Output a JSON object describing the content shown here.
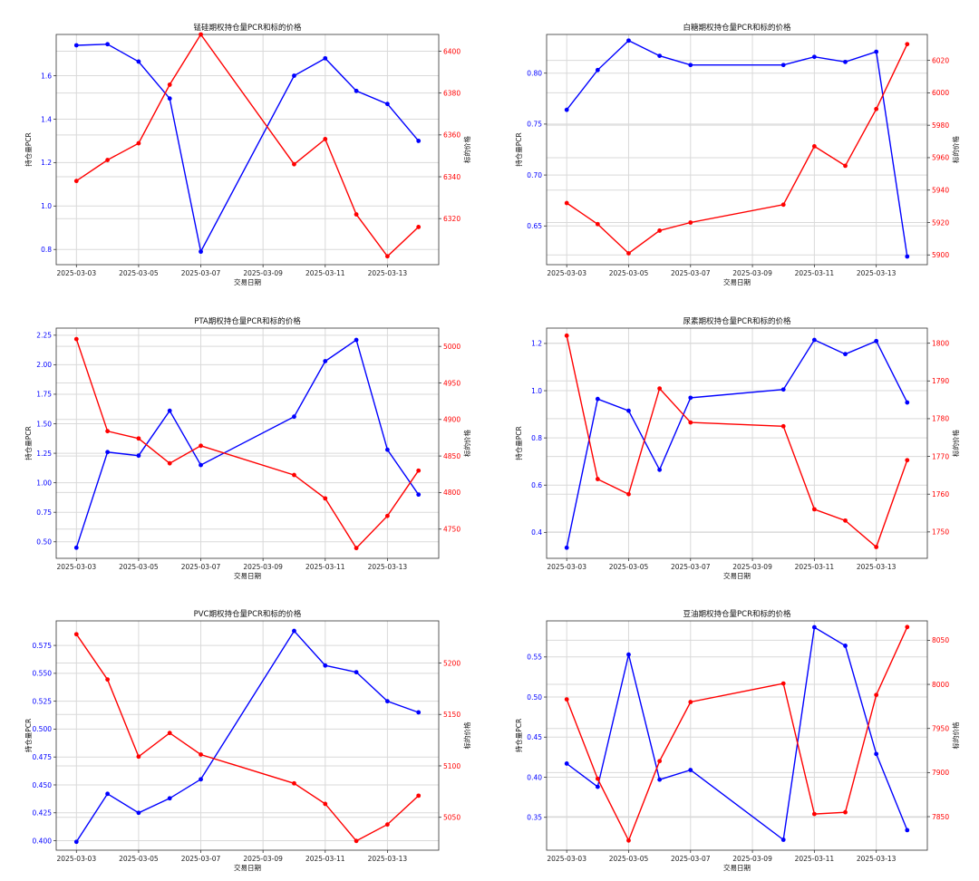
{
  "colors": {
    "pcr": "#0000ff",
    "price": "#ff0000",
    "grid": "#d9d9d9",
    "axis": "#333333"
  },
  "chart_data": [
    {
      "type": "line",
      "title": "锰硅期权持仓量PCR和标的价格",
      "xlabel": "交易日期",
      "ylabel_left": "持仓量PCR",
      "ylabel_right": "标的价格",
      "x": [
        "2025-03-03",
        "2025-03-04",
        "2025-03-05",
        "2025-03-06",
        "2025-03-07",
        "2025-03-10",
        "2025-03-11",
        "2025-03-12",
        "2025-03-13",
        "2025-03-14"
      ],
      "xticks": [
        "2025-03-03",
        "2025-03-05",
        "2025-03-07",
        "2025-03-09",
        "2025-03-11",
        "2025-03-13"
      ],
      "grid": true,
      "left_axis": {
        "lim": [
          0.73,
          1.79
        ],
        "ticks": [
          0.8,
          1.0,
          1.2,
          1.4,
          1.6
        ],
        "labels": [
          "0.8",
          "1.0",
          "1.2",
          "1.4",
          "1.6"
        ]
      },
      "right_axis": {
        "lim": [
          6298,
          6408
        ],
        "ticks": [
          6320,
          6340,
          6360,
          6380,
          6400
        ],
        "labels": [
          "6320",
          "6340",
          "6360",
          "6380",
          "6400"
        ]
      },
      "series": [
        {
          "axis": "left",
          "values": [
            1.74,
            1.745,
            1.665,
            1.495,
            0.79,
            1.6,
            1.68,
            1.53,
            1.47,
            1.3
          ]
        },
        {
          "axis": "right",
          "values": [
            6338,
            6348,
            6356,
            6384,
            6408,
            6346,
            6358,
            6322,
            6302,
            6316
          ]
        }
      ]
    },
    {
      "type": "line",
      "title": "白糖期权持仓量PCR和标的价格",
      "xlabel": "交易日期",
      "ylabel_left": "持仓量PCR",
      "ylabel_right": "标的价格",
      "x": [
        "2025-03-03",
        "2025-03-04",
        "2025-03-05",
        "2025-03-06",
        "2025-03-07",
        "2025-03-10",
        "2025-03-11",
        "2025-03-12",
        "2025-03-13",
        "2025-03-14"
      ],
      "xticks": [
        "2025-03-03",
        "2025-03-05",
        "2025-03-07",
        "2025-03-09",
        "2025-03-11",
        "2025-03-13"
      ],
      "grid": true,
      "left_axis": {
        "lim": [
          0.612,
          0.838
        ],
        "ticks": [
          0.65,
          0.7,
          0.75,
          0.8
        ],
        "labels": [
          "0.65",
          "0.70",
          "0.75",
          "0.80"
        ]
      },
      "right_axis": {
        "lim": [
          5894,
          6036
        ],
        "ticks": [
          5900,
          5920,
          5940,
          5960,
          5980,
          6000,
          6020
        ],
        "labels": [
          "5900",
          "5920",
          "5940",
          "5960",
          "5980",
          "6000",
          "6020"
        ]
      },
      "series": [
        {
          "axis": "left",
          "values": [
            0.764,
            0.803,
            0.832,
            0.817,
            0.808,
            0.808,
            0.816,
            0.811,
            0.821,
            0.62
          ]
        },
        {
          "axis": "right",
          "values": [
            5932,
            5919,
            5901,
            5915,
            5920,
            5931,
            5967,
            5955,
            5990,
            6030
          ]
        }
      ]
    },
    {
      "type": "line",
      "title": "PTA期权持仓量PCR和标的价格",
      "xlabel": "交易日期",
      "ylabel_left": "持仓量PCR",
      "ylabel_right": "标的价格",
      "x": [
        "2025-03-03",
        "2025-03-04",
        "2025-03-05",
        "2025-03-06",
        "2025-03-07",
        "2025-03-10",
        "2025-03-11",
        "2025-03-12",
        "2025-03-13",
        "2025-03-14"
      ],
      "xticks": [
        "2025-03-03",
        "2025-03-05",
        "2025-03-07",
        "2025-03-09",
        "2025-03-11",
        "2025-03-13"
      ],
      "grid": true,
      "left_axis": {
        "lim": [
          0.36,
          2.31
        ],
        "ticks": [
          0.5,
          0.75,
          1.0,
          1.25,
          1.5,
          1.75,
          2.0,
          2.25
        ],
        "labels": [
          "0.50",
          "0.75",
          "1.00",
          "1.25",
          "1.50",
          "1.75",
          "2.00",
          "2.25"
        ]
      },
      "right_axis": {
        "lim": [
          4710,
          5025
        ],
        "ticks": [
          4750,
          4800,
          4850,
          4900,
          4950,
          5000
        ],
        "labels": [
          "4750",
          "4800",
          "4850",
          "4900",
          "4950",
          "5000"
        ]
      },
      "series": [
        {
          "axis": "left",
          "values": [
            0.45,
            1.26,
            1.23,
            1.61,
            1.15,
            1.56,
            2.03,
            2.21,
            1.28,
            0.9
          ]
        },
        {
          "axis": "right",
          "values": [
            5010,
            4884,
            4874,
            4840,
            4864,
            4824,
            4792,
            4724,
            4768,
            4830
          ]
        }
      ]
    },
    {
      "type": "line",
      "title": "尿素期权持仓量PCR和标的价格",
      "xlabel": "交易日期",
      "ylabel_left": "持仓量PCR",
      "ylabel_right": "标的价格",
      "x": [
        "2025-03-03",
        "2025-03-04",
        "2025-03-05",
        "2025-03-06",
        "2025-03-07",
        "2025-03-10",
        "2025-03-11",
        "2025-03-12",
        "2025-03-13",
        "2025-03-14"
      ],
      "xticks": [
        "2025-03-03",
        "2025-03-05",
        "2025-03-07",
        "2025-03-09",
        "2025-03-11",
        "2025-03-13"
      ],
      "grid": true,
      "left_axis": {
        "lim": [
          0.29,
          1.265
        ],
        "ticks": [
          0.4,
          0.6,
          0.8,
          1.0,
          1.2
        ],
        "labels": [
          "0.4",
          "0.6",
          "0.8",
          "1.0",
          "1.2"
        ]
      },
      "right_axis": {
        "lim": [
          1743,
          1804
        ],
        "ticks": [
          1750,
          1760,
          1770,
          1780,
          1790,
          1800
        ],
        "labels": [
          "1750",
          "1760",
          "1770",
          "1780",
          "1790",
          "1800"
        ]
      },
      "series": [
        {
          "axis": "left",
          "values": [
            0.335,
            0.965,
            0.915,
            0.665,
            0.97,
            1.005,
            1.215,
            1.155,
            1.21,
            0.95
          ]
        },
        {
          "axis": "right",
          "values": [
            1802,
            1764,
            1760,
            1788,
            1779,
            1778,
            1756,
            1753,
            1746,
            1769
          ]
        }
      ]
    },
    {
      "type": "line",
      "title": "PVC期权持仓量PCR和标的价格",
      "xlabel": "交易日期",
      "ylabel_left": "持仓量PCR",
      "ylabel_right": "标的价格",
      "x": [
        "2025-03-03",
        "2025-03-04",
        "2025-03-05",
        "2025-03-06",
        "2025-03-07",
        "2025-03-10",
        "2025-03-11",
        "2025-03-12",
        "2025-03-13",
        "2025-03-14"
      ],
      "xticks": [
        "2025-03-03",
        "2025-03-05",
        "2025-03-07",
        "2025-03-09",
        "2025-03-11",
        "2025-03-13"
      ],
      "grid": true,
      "left_axis": {
        "lim": [
          0.3915,
          0.597
        ],
        "ticks": [
          0.4,
          0.425,
          0.45,
          0.475,
          0.5,
          0.525,
          0.55,
          0.575
        ],
        "labels": [
          "0.400",
          "0.425",
          "0.450",
          "0.475",
          "0.500",
          "0.525",
          "0.550",
          "0.575"
        ]
      },
      "right_axis": {
        "lim": [
          5018,
          5241
        ],
        "ticks": [
          5050,
          5100,
          5150,
          5200
        ],
        "labels": [
          "5050",
          "5100",
          "5150",
          "5200"
        ]
      },
      "series": [
        {
          "axis": "left",
          "values": [
            0.399,
            0.442,
            0.425,
            0.438,
            0.455,
            0.588,
            0.557,
            0.551,
            0.525,
            0.515
          ]
        },
        {
          "axis": "right",
          "values": [
            5228,
            5184,
            5109,
            5132,
            5111,
            5083,
            5063,
            5027,
            5043,
            5071
          ]
        }
      ]
    },
    {
      "type": "line",
      "title": "豆油期权持仓量PCR和标的价格",
      "xlabel": "交易日期",
      "ylabel_left": "持仓量PCR",
      "ylabel_right": "标的价格",
      "x": [
        "2025-03-03",
        "2025-03-04",
        "2025-03-05",
        "2025-03-06",
        "2025-03-07",
        "2025-03-10",
        "2025-03-11",
        "2025-03-12",
        "2025-03-13",
        "2025-03-14"
      ],
      "xticks": [
        "2025-03-03",
        "2025-03-05",
        "2025-03-07",
        "2025-03-09",
        "2025-03-11",
        "2025-03-13"
      ],
      "grid": true,
      "left_axis": {
        "lim": [
          0.309,
          0.595
        ],
        "ticks": [
          0.35,
          0.4,
          0.45,
          0.5,
          0.55
        ],
        "labels": [
          "0.35",
          "0.40",
          "0.45",
          "0.50",
          "0.55"
        ]
      },
      "right_axis": {
        "lim": [
          7812,
          8072
        ],
        "ticks": [
          7850,
          7900,
          7950,
          8000,
          8050
        ],
        "labels": [
          "7850",
          "7900",
          "7950",
          "8000",
          "8050"
        ]
      },
      "series": [
        {
          "axis": "left",
          "values": [
            0.417,
            0.388,
            0.553,
            0.397,
            0.409,
            0.322,
            0.587,
            0.564,
            0.429,
            0.334
          ]
        },
        {
          "axis": "right",
          "values": [
            7983,
            7893,
            7823,
            7913,
            7980,
            8001,
            7853,
            7855,
            7988,
            8065
          ]
        }
      ]
    }
  ]
}
